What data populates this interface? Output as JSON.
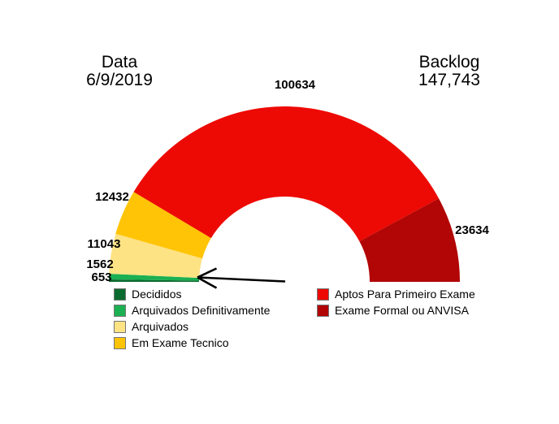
{
  "header": {
    "left_title": "Data",
    "left_value": "6/9/2019",
    "right_title": "Backlog",
    "right_value": "147,743"
  },
  "chart_data": {
    "type": "pie",
    "variant": "half-donut-gauge",
    "title": "Backlog 147,743 - Data 6/9/2019",
    "backlog_total": "147,743",
    "date": "6/9/2019",
    "start_angle_deg": 180,
    "end_angle_deg": 0,
    "legend_position": "bottom",
    "categories": [
      "Decididos",
      "Arquivados Definitivamente",
      "Arquivados",
      "Em Exame Tecnico",
      "Aptos Para Primeiro Exame",
      "Exame Formal ou ANVISA"
    ],
    "values": [
      653,
      1562,
      11043,
      12432,
      100634,
      23634
    ],
    "segments": [
      {
        "label": "Decididos",
        "value": 653,
        "color": "#0B6B2F"
      },
      {
        "label": "Arquivados Definitivamente",
        "value": 1562,
        "color": "#1BB052"
      },
      {
        "label": "Arquivados",
        "value": 11043,
        "color": "#FDE384"
      },
      {
        "label": "Em Exame Tecnico",
        "value": 12432,
        "color": "#FFC405"
      },
      {
        "label": "Aptos Para Primeiro Exame",
        "value": 100634,
        "color": "#ED0A04"
      },
      {
        "label": "Exame Formal ou ANVISA",
        "value": 23634,
        "color": "#B20505"
      }
    ],
    "annotation": {
      "arrow_points_to": "Arquivados Definitivamente / Decididos thin segments"
    }
  }
}
